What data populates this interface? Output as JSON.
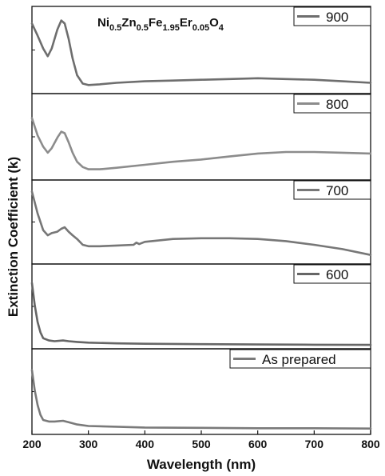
{
  "chart_data": {
    "type": "line",
    "stacked_panels": true,
    "title_formula": [
      {
        "t": "Ni",
        "sub": false
      },
      {
        "t": "0.5",
        "sub": true
      },
      {
        "t": "Zn",
        "sub": false
      },
      {
        "t": "0.5",
        "sub": true
      },
      {
        "t": "Fe",
        "sub": false
      },
      {
        "t": "1.95",
        "sub": true
      },
      {
        "t": "Er",
        "sub": false
      },
      {
        "t": "0.05",
        "sub": true
      },
      {
        "t": "O",
        "sub": false
      },
      {
        "t": "4",
        "sub": true
      }
    ],
    "xlabel": "Wavelength (nm)",
    "ylabel": "Extinction Coefficient (k)",
    "xlim": [
      200,
      800
    ],
    "xticks": [
      "200",
      "300",
      "400",
      "500",
      "600",
      "700",
      "800"
    ],
    "y_tick_labels_shown": false,
    "legend_placement": "top-right of each panel",
    "series": [
      {
        "name": "900",
        "color": "#6e6e6e",
        "x": [
          200,
          210,
          220,
          228,
          235,
          245,
          252,
          258,
          265,
          272,
          280,
          290,
          300,
          320,
          350,
          400,
          450,
          500,
          550,
          600,
          650,
          700,
          750,
          800
        ],
        "y": [
          0.88,
          0.72,
          0.55,
          0.45,
          0.55,
          0.8,
          0.92,
          0.88,
          0.68,
          0.42,
          0.2,
          0.09,
          0.07,
          0.08,
          0.1,
          0.12,
          0.13,
          0.14,
          0.15,
          0.16,
          0.15,
          0.14,
          0.12,
          0.1
        ]
      },
      {
        "name": "800",
        "color": "#8c8c8c",
        "x": [
          200,
          210,
          220,
          228,
          235,
          245,
          252,
          258,
          265,
          272,
          280,
          290,
          300,
          320,
          350,
          400,
          450,
          500,
          550,
          600,
          650,
          700,
          750,
          800
        ],
        "y": [
          0.78,
          0.55,
          0.4,
          0.32,
          0.38,
          0.52,
          0.6,
          0.58,
          0.46,
          0.32,
          0.2,
          0.13,
          0.1,
          0.1,
          0.12,
          0.16,
          0.2,
          0.23,
          0.27,
          0.31,
          0.33,
          0.33,
          0.32,
          0.31
        ]
      },
      {
        "name": "700",
        "color": "#777777",
        "x": [
          200,
          210,
          220,
          228,
          235,
          245,
          252,
          258,
          265,
          272,
          280,
          290,
          300,
          320,
          350,
          380,
          385,
          390,
          400,
          450,
          500,
          550,
          600,
          650,
          700,
          750,
          800
        ],
        "y": [
          0.95,
          0.65,
          0.42,
          0.35,
          0.38,
          0.4,
          0.44,
          0.46,
          0.4,
          0.35,
          0.3,
          0.22,
          0.2,
          0.2,
          0.21,
          0.22,
          0.25,
          0.23,
          0.26,
          0.3,
          0.31,
          0.31,
          0.3,
          0.27,
          0.22,
          0.16,
          0.08
        ]
      },
      {
        "name": "600",
        "color": "#666666",
        "x": [
          200,
          205,
          210,
          215,
          220,
          230,
          240,
          255,
          265,
          280,
          300,
          350,
          400,
          500,
          600,
          700,
          800
        ],
        "y": [
          0.85,
          0.55,
          0.32,
          0.18,
          0.1,
          0.07,
          0.06,
          0.07,
          0.06,
          0.05,
          0.04,
          0.03,
          0.025,
          0.02,
          0.015,
          0.012,
          0.01
        ]
      },
      {
        "name": "As prepared",
        "color": "#7a7a7a",
        "x": [
          200,
          205,
          210,
          215,
          220,
          230,
          240,
          255,
          265,
          280,
          300,
          350,
          400,
          500,
          600,
          700,
          800
        ],
        "y": [
          0.82,
          0.55,
          0.35,
          0.22,
          0.15,
          0.13,
          0.13,
          0.14,
          0.12,
          0.09,
          0.07,
          0.06,
          0.05,
          0.045,
          0.04,
          0.04,
          0.035
        ]
      }
    ]
  }
}
